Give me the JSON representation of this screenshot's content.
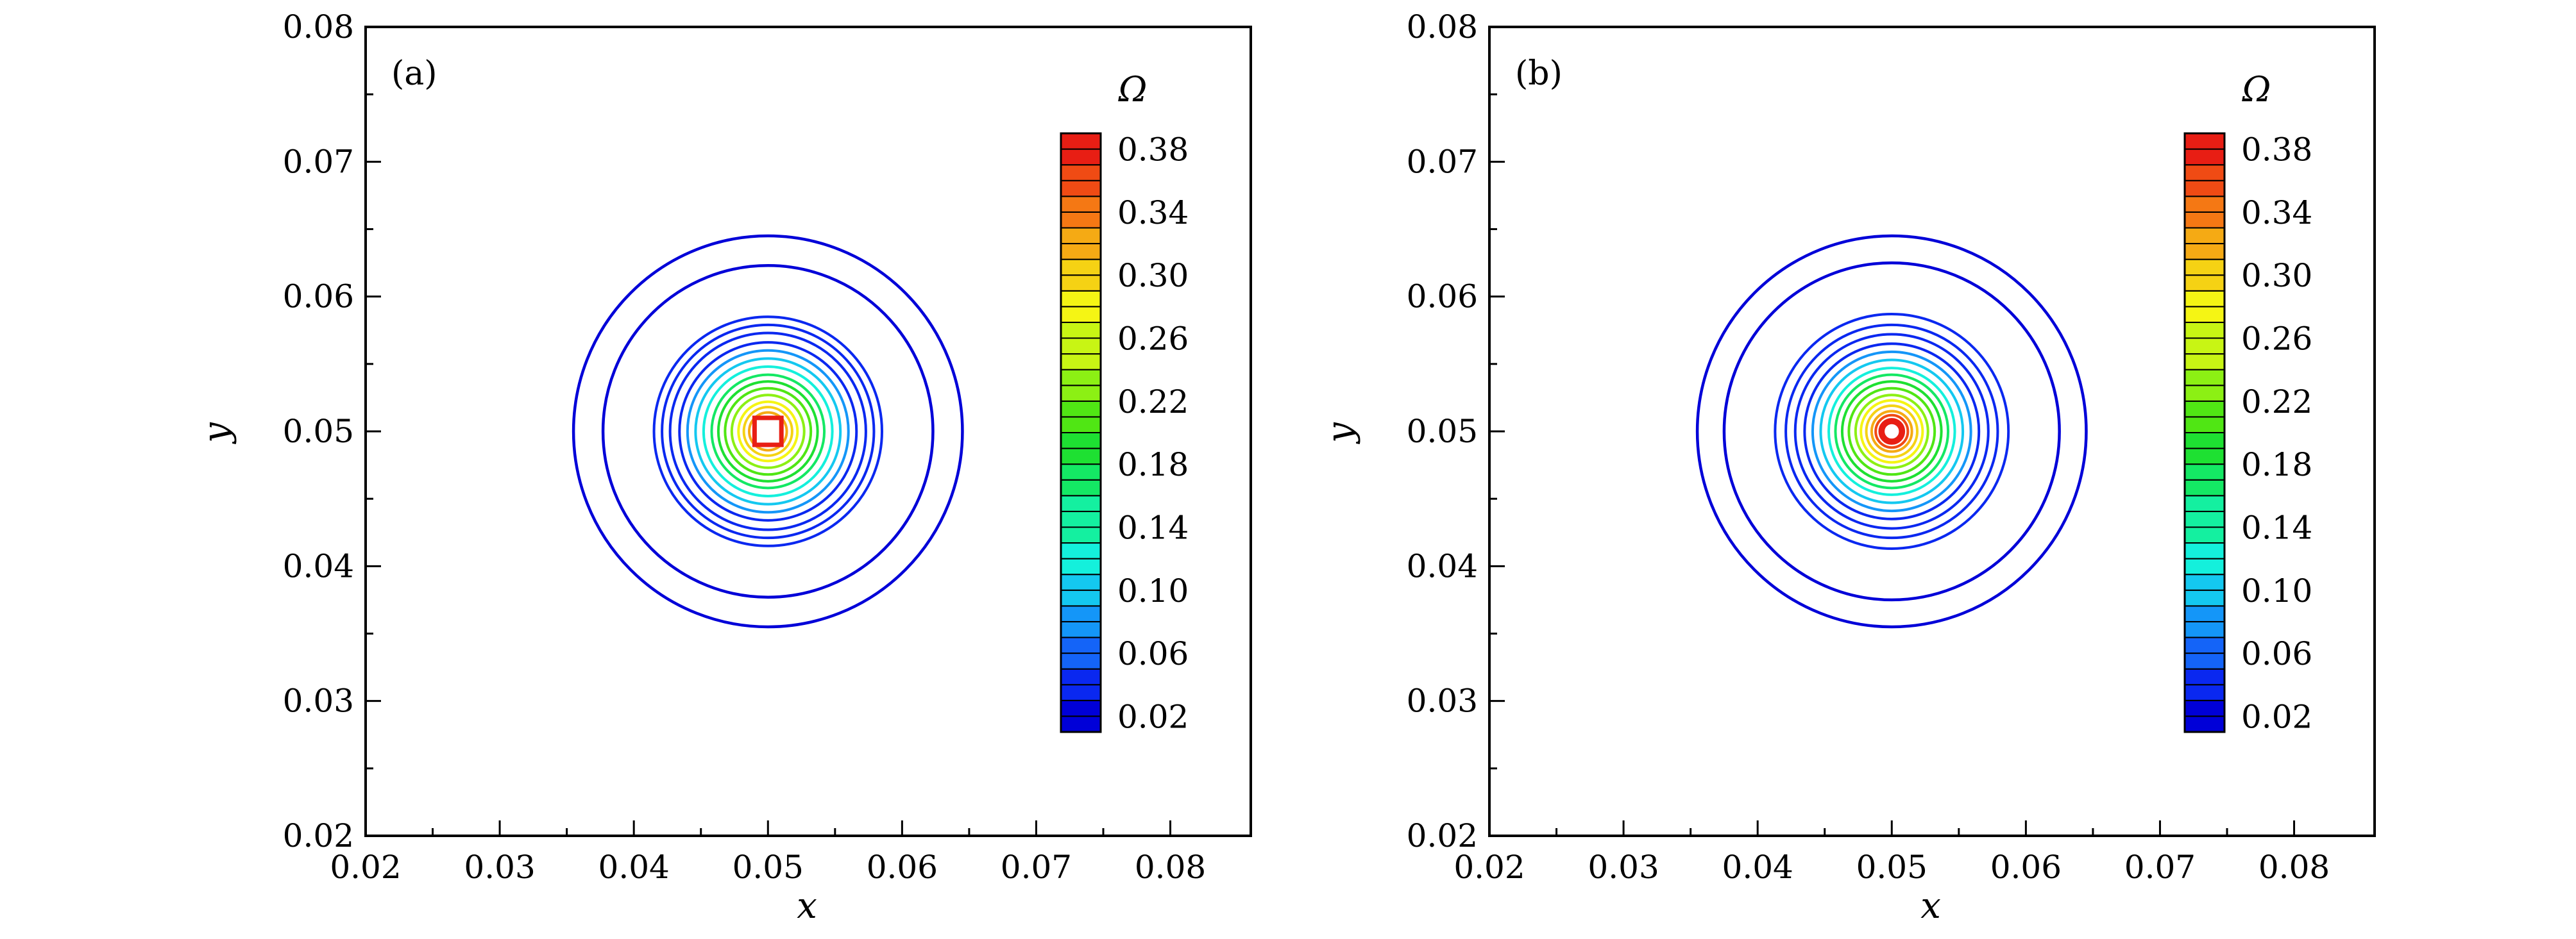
{
  "chart_data": [
    {
      "type": "contour",
      "panel_label": "(a)",
      "xlabel": "x",
      "ylabel": "y",
      "xlim": [
        0.02,
        0.086
      ],
      "ylim": [
        0.02,
        0.08
      ],
      "xticks": [
        "0.02",
        "0.03",
        "0.04",
        "0.05",
        "0.06",
        "0.07",
        "0.08"
      ],
      "yticks": [
        "0.02",
        "0.03",
        "0.04",
        "0.05",
        "0.06",
        "0.07",
        "0.08"
      ],
      "colorbar": {
        "title": "Ω",
        "ticks": [
          "0.02",
          "0.06",
          "0.10",
          "0.14",
          "0.18",
          "0.22",
          "0.26",
          "0.30",
          "0.34",
          "0.38"
        ],
        "levels": [
          0.01,
          0.02,
          0.03,
          0.04,
          0.05,
          0.06,
          0.07,
          0.08,
          0.09,
          0.1,
          0.11,
          0.12,
          0.13,
          0.14,
          0.15,
          0.16,
          0.17,
          0.18,
          0.19,
          0.2,
          0.21,
          0.22,
          0.23,
          0.24,
          0.25,
          0.26,
          0.27,
          0.28,
          0.29,
          0.3,
          0.31,
          0.32,
          0.33,
          0.34,
          0.35,
          0.36,
          0.37,
          0.38,
          0.39
        ],
        "colormap": [
          "#0000d8",
          "#0a28f0",
          "#1464f8",
          "#1496f8",
          "#14c8f0",
          "#14f0dc",
          "#14f0a0",
          "#14e864",
          "#1ee032",
          "#50e614",
          "#8cf014",
          "#c8f514",
          "#f5f514",
          "#f5d214",
          "#f5aa14",
          "#f57814",
          "#f04b14",
          "#e81e14"
        ]
      },
      "center": [
        0.05,
        0.05
      ],
      "contour_radii": [
        0.0145,
        0.0123,
        0.0085,
        0.0079,
        0.0073,
        0.0066,
        0.006,
        0.0054,
        0.0048,
        0.0042,
        0.0037,
        0.0032,
        0.0027,
        0.0022,
        0.0018,
        0.0014,
        0.001,
        0.0007
      ],
      "inner_square_half_width": 0.001
    },
    {
      "type": "contour",
      "panel_label": "(b)",
      "xlabel": "x",
      "ylabel": "y",
      "xlim": [
        0.02,
        0.086
      ],
      "ylim": [
        0.02,
        0.08
      ],
      "xticks": [
        "0.02",
        "0.03",
        "0.04",
        "0.05",
        "0.06",
        "0.07",
        "0.08"
      ],
      "yticks": [
        "0.02",
        "0.03",
        "0.04",
        "0.05",
        "0.06",
        "0.07",
        "0.08"
      ],
      "colorbar": {
        "title": "Ω",
        "ticks": [
          "0.02",
          "0.06",
          "0.10",
          "0.14",
          "0.18",
          "0.22",
          "0.26",
          "0.30",
          "0.34",
          "0.38"
        ],
        "levels": [
          0.01,
          0.02,
          0.03,
          0.04,
          0.05,
          0.06,
          0.07,
          0.08,
          0.09,
          0.1,
          0.11,
          0.12,
          0.13,
          0.14,
          0.15,
          0.16,
          0.17,
          0.18,
          0.19,
          0.2,
          0.21,
          0.22,
          0.23,
          0.24,
          0.25,
          0.26,
          0.27,
          0.28,
          0.29,
          0.3,
          0.31,
          0.32,
          0.33,
          0.34,
          0.35,
          0.36,
          0.37,
          0.38,
          0.39
        ],
        "colormap": [
          "#0000d8",
          "#0a28f0",
          "#1464f8",
          "#1496f8",
          "#14c8f0",
          "#14f0dc",
          "#14f0a0",
          "#14e864",
          "#1ee032",
          "#50e614",
          "#8cf014",
          "#c8f514",
          "#f5f514",
          "#f5d214",
          "#f5aa14",
          "#f57814",
          "#f04b14",
          "#e81e14"
        ]
      },
      "center": [
        0.05,
        0.05
      ],
      "contour_radii": [
        0.0145,
        0.0125,
        0.0087,
        0.0079,
        0.0072,
        0.0065,
        0.0059,
        0.0053,
        0.0047,
        0.0042,
        0.0037,
        0.0032,
        0.0027,
        0.0023,
        0.0019,
        0.0015,
        0.0012,
        0.0009
      ],
      "inner_circle_radius": 0.0007
    }
  ]
}
